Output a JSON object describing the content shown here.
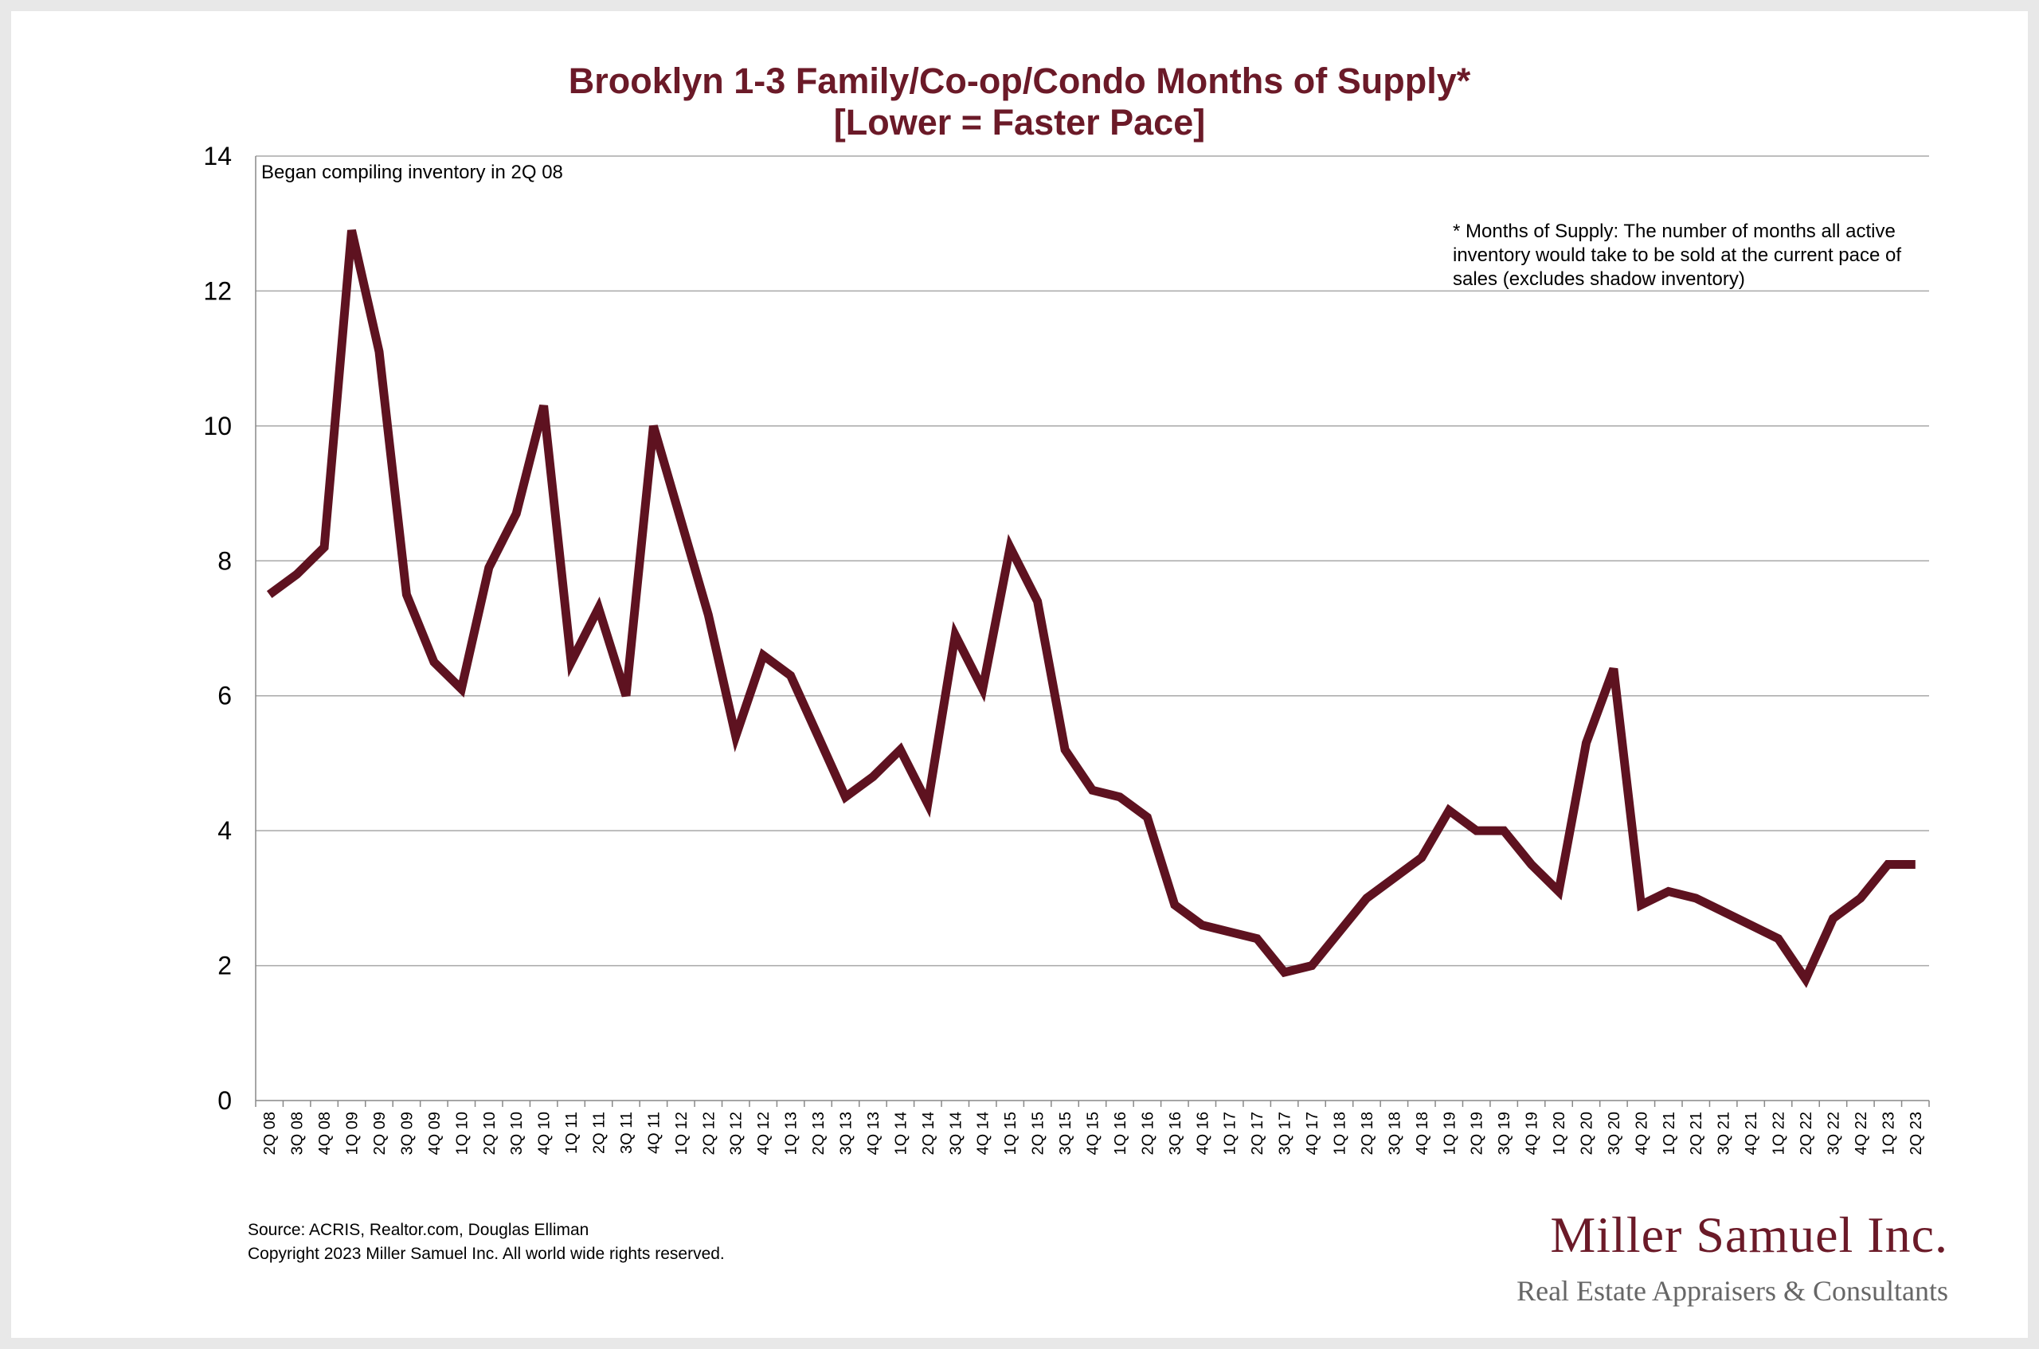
{
  "chart_data": {
    "type": "line",
    "title": "Brooklyn 1-3 Family/Co-op/Condo Months of Supply*",
    "subtitle": "[Lower = Faster Pace]",
    "xlabel": "",
    "ylabel": "",
    "ylim": [
      0,
      14
    ],
    "yticks": [
      0,
      2,
      4,
      6,
      8,
      10,
      12,
      14
    ],
    "grid": true,
    "line_color": "#5e1220",
    "categories": [
      "2Q 08",
      "3Q 08",
      "4Q 08",
      "1Q 09",
      "2Q 09",
      "3Q 09",
      "4Q 09",
      "1Q 10",
      "2Q 10",
      "3Q 10",
      "4Q 10",
      "1Q 11",
      "2Q 11",
      "3Q 11",
      "4Q 11",
      "1Q 12",
      "2Q 12",
      "3Q 12",
      "4Q 12",
      "1Q 13",
      "2Q 13",
      "3Q 13",
      "4Q 13",
      "1Q 14",
      "2Q 14",
      "3Q 14",
      "4Q 14",
      "1Q 15",
      "2Q 15",
      "3Q 15",
      "4Q 15",
      "1Q 16",
      "2Q 16",
      "3Q 16",
      "4Q 16",
      "1Q 17",
      "2Q 17",
      "3Q 17",
      "4Q 17",
      "1Q 18",
      "2Q 18",
      "3Q 18",
      "4Q 18",
      "1Q 19",
      "2Q 19",
      "3Q 19",
      "4Q 19",
      "1Q 20",
      "2Q 20",
      "3Q 20",
      "4Q 20",
      "1Q 21",
      "2Q 21",
      "3Q 21",
      "4Q 21",
      "1Q 22",
      "2Q 22",
      "3Q 22",
      "4Q 22",
      "1Q 23",
      "2Q 23"
    ],
    "values": [
      7.5,
      7.8,
      8.2,
      12.9,
      11.1,
      7.5,
      6.5,
      6.1,
      7.9,
      8.7,
      10.3,
      6.5,
      7.3,
      6.0,
      10.0,
      8.6,
      7.2,
      5.4,
      6.6,
      6.3,
      5.4,
      4.5,
      4.8,
      5.2,
      4.4,
      6.9,
      6.1,
      8.2,
      7.4,
      5.2,
      4.6,
      4.5,
      4.2,
      2.9,
      2.6,
      2.5,
      2.4,
      1.9,
      2.0,
      2.5,
      3.0,
      3.3,
      3.6,
      4.3,
      4.0,
      4.0,
      3.5,
      3.1,
      5.3,
      6.4,
      2.9,
      3.1,
      3.0,
      2.8,
      2.6,
      2.4,
      1.8,
      2.7,
      3.0,
      3.5,
      3.5
    ],
    "annotations": [
      "Began compiling inventory in 2Q 08",
      "* Months of Supply: The number of months all active inventory would take to be sold at the current pace of sales (excludes shadow inventory)"
    ]
  },
  "notes": {
    "began": "Began compiling inventory in 2Q 08",
    "def_line1": "* Months of Supply: The number of months all active",
    "def_line2": "inventory would take to be sold at the current pace of",
    "def_line3": "sales (excludes shadow inventory)"
  },
  "footer": {
    "source": "Source: ACRIS, Realtor.com, Douglas Elliman",
    "copyright": "Copyright 2023 Miller Samuel Inc.  All world wide rights reserved."
  },
  "logo": {
    "name": "Miller Samuel Inc.",
    "tagline": "Real Estate Appraisers & Consultants"
  }
}
